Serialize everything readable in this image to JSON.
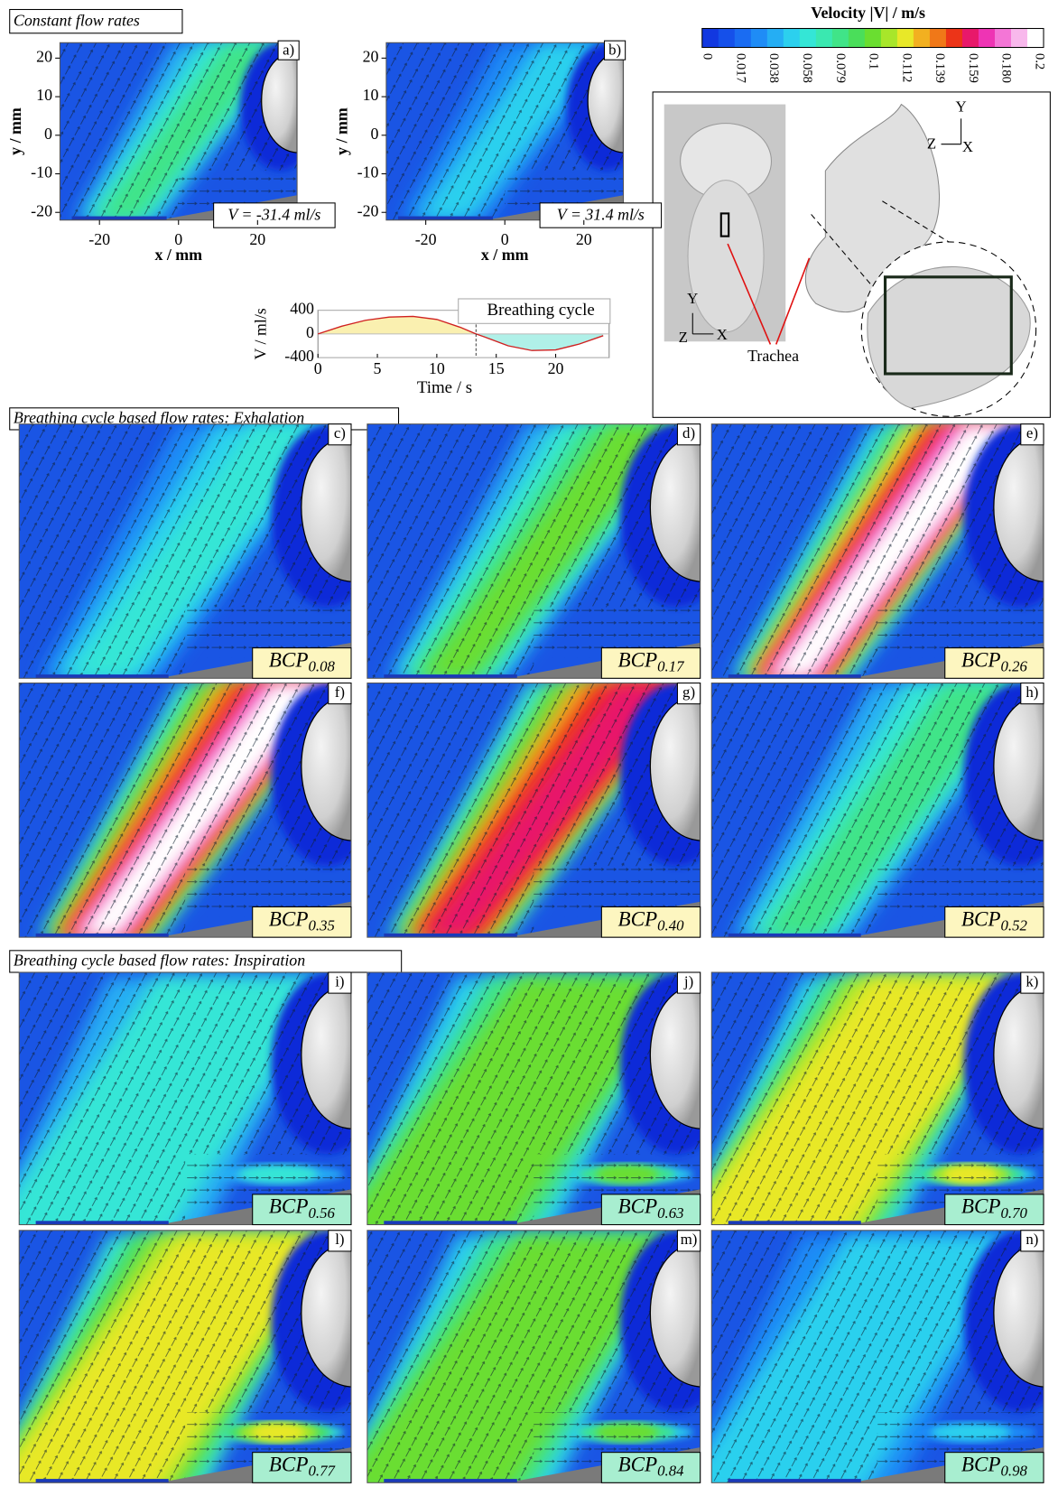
{
  "sections": {
    "constant": "Constant flow rates",
    "exhalation": "Breathing cycle based flow rates: Exhalation",
    "inspiration": "Breathing cycle based flow rates: Inspiration"
  },
  "colorbar": {
    "title": "Velocity |V| / m/s",
    "colors": [
      "#1238e0",
      "#1550ea",
      "#1a6cf2",
      "#1f8cf6",
      "#25aef4",
      "#2cd0ee",
      "#34e6d6",
      "#3ae8b0",
      "#40e488",
      "#4ade5a",
      "#6ade30",
      "#a8e62a",
      "#e8e828",
      "#f2b020",
      "#f07818",
      "#ec3418",
      "#e8186a",
      "#ee34b4",
      "#f476d6",
      "#f8b8ec",
      "#ffffff"
    ],
    "ticks": [
      0,
      0.017,
      0.038,
      0.058,
      0.079,
      0.1,
      0.112,
      0.139,
      0.159,
      {
        "value": 0.18,
        "label": "0.180"
      },
      0.2
    ]
  },
  "constant_panels": {
    "x_label": "x / mm",
    "y_label": "y / mm",
    "xticks": [
      -20,
      0,
      20
    ],
    "yticks": [
      20,
      10,
      0,
      -10,
      -20
    ],
    "panels": [
      {
        "label": "a)",
        "flow": "V = -31.4 ml/s",
        "jet": [
          "#25aef4",
          "#34e6d6",
          "#40e488"
        ]
      },
      {
        "label": "b)",
        "flow": "V = 31.4 ml/s",
        "jet": [
          "#1f8cf6",
          "#2cd0ee"
        ]
      }
    ]
  },
  "anatomy": {
    "axis_y": "Y",
    "axis_z": "Z",
    "axis_x": "X",
    "annotation": "Trachea"
  },
  "chart_data": {
    "type": "line",
    "title": "Breathing cycle",
    "x_label": "Time / s",
    "y_label": "V / ml/s",
    "x": [
      0,
      2,
      4,
      6,
      8,
      10,
      12,
      13.3,
      14,
      16,
      18,
      20,
      22,
      24
    ],
    "values": [
      0,
      130,
      230,
      285,
      295,
      245,
      110,
      0,
      -50,
      -200,
      -280,
      -270,
      -170,
      -30
    ],
    "color": "#d02020",
    "positive_fill": "#faf0b0",
    "negative_fill": "#b0f0e8",
    "vline": 13.3,
    "xlim": [
      0,
      24.5
    ],
    "ylim": [
      -400,
      400
    ],
    "xticks": [
      0,
      5,
      10,
      15,
      20
    ],
    "yticks": [
      400,
      0,
      -400
    ]
  },
  "exhalation": {
    "box_color": "#fdf6c0",
    "panels": [
      {
        "label": "c)",
        "bcp": "BCP",
        "sub": "0.08",
        "jet": [
          "#1f8cf6",
          "#2cd0ee",
          "#34e6d6"
        ]
      },
      {
        "label": "d)",
        "bcp": "BCP",
        "sub": "0.17",
        "jet": [
          "#25aef4",
          "#34e6d6",
          "#40e488",
          "#6ade30"
        ]
      },
      {
        "label": "e)",
        "bcp": "BCP",
        "sub": "0.26",
        "jet": [
          "#2cd0ee",
          "#40e488",
          "#e8e828",
          "#ec3418",
          "#ee34b4",
          "#ffffff"
        ]
      },
      {
        "label": "f)",
        "bcp": "BCP",
        "sub": "0.35",
        "jet": [
          "#34e6d6",
          "#6ade30",
          "#f2b020",
          "#ec3418",
          "#ee34b4",
          "#ffffff"
        ]
      },
      {
        "label": "g)",
        "bcp": "BCP",
        "sub": "0.40",
        "jet": [
          "#34e6d6",
          "#6ade30",
          "#f2b020",
          "#ec3418",
          "#e8186a"
        ]
      },
      {
        "label": "h)",
        "bcp": "BCP",
        "sub": "0.52",
        "jet": [
          "#25aef4",
          "#34e6d6",
          "#40e488"
        ]
      }
    ]
  },
  "inspiration": {
    "box_color": "#a8eed0",
    "panels": [
      {
        "label": "i)",
        "bcp": "BCP",
        "sub": "0.56",
        "jet": [
          "#25aef4",
          "#34e6d6"
        ]
      },
      {
        "label": "j)",
        "bcp": "BCP",
        "sub": "0.63",
        "jet": [
          "#2cd0ee",
          "#40e488",
          "#6ade30"
        ]
      },
      {
        "label": "k)",
        "bcp": "BCP",
        "sub": "0.70",
        "jet": [
          "#2cd0ee",
          "#40e488",
          "#a8e62a",
          "#e8e828"
        ]
      },
      {
        "label": "l)",
        "bcp": "BCP",
        "sub": "0.77",
        "jet": [
          "#34e6d6",
          "#4ade5a",
          "#a8e62a",
          "#e8e828"
        ]
      },
      {
        "label": "m)",
        "bcp": "BCP",
        "sub": "0.84",
        "jet": [
          "#2cd0ee",
          "#40e488",
          "#6ade30"
        ]
      },
      {
        "label": "n)",
        "bcp": "BCP",
        "sub": "0.98",
        "jet": [
          "#1f8cf6",
          "#2cd0ee"
        ]
      }
    ]
  }
}
